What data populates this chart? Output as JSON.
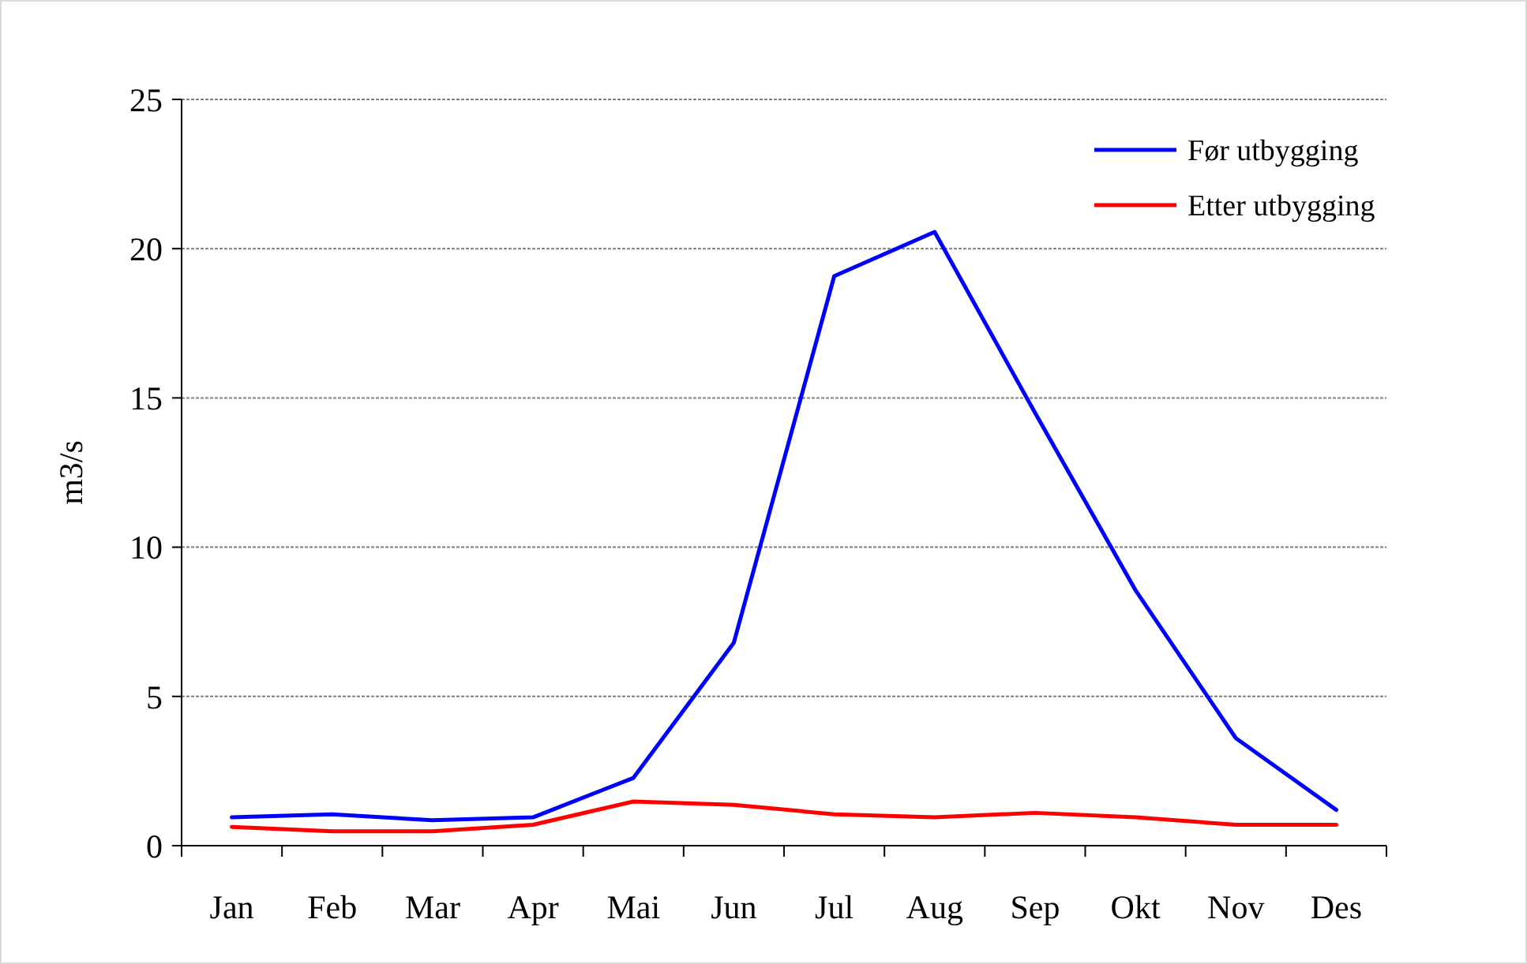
{
  "chart_data": {
    "type": "line",
    "ylabel": "m3/s",
    "categories": [
      "Jan",
      "Feb",
      "Mar",
      "Apr",
      "Mai",
      "Jun",
      "Jul",
      "Aug",
      "Sep",
      "Okt",
      "Nov",
      "Des"
    ],
    "series": [
      {
        "name": "Før utbygging",
        "color": "#0000ff",
        "values": [
          0.95,
          1.05,
          0.85,
          0.95,
          2.27,
          6.8,
          19.08,
          20.56,
          14.5,
          8.56,
          3.6,
          1.2
        ]
      },
      {
        "name": "Etter utbygging",
        "color": "#ff0000",
        "values": [
          0.63,
          0.48,
          0.48,
          0.7,
          1.48,
          1.37,
          1.05,
          0.95,
          1.1,
          0.95,
          0.7,
          0.7
        ]
      }
    ],
    "ylim": [
      0,
      25
    ],
    "yticks": [
      0,
      5,
      10,
      15,
      20,
      25
    ],
    "grid": "y",
    "legend": "top right",
    "marker": "none",
    "line_style": "solid"
  }
}
